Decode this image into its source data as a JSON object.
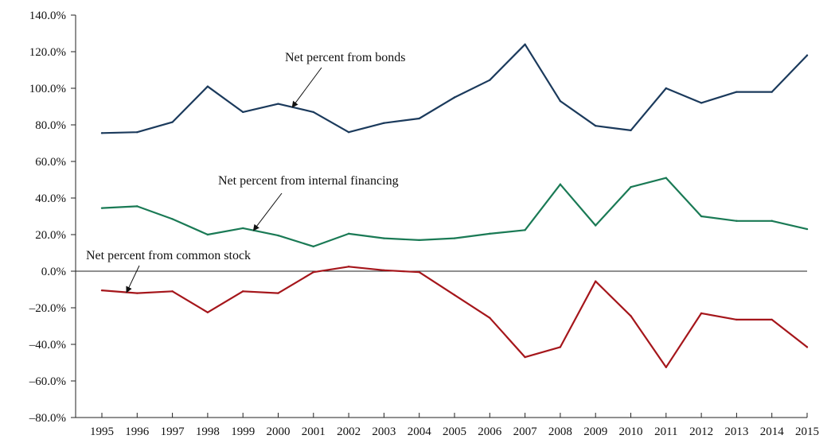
{
  "chart_data": {
    "type": "line",
    "x": [
      "1995",
      "1996",
      "1997",
      "1998",
      "1999",
      "2000",
      "2001",
      "2002",
      "2003",
      "2004",
      "2005",
      "2006",
      "2007",
      "2008",
      "2009",
      "2010",
      "2011",
      "2012",
      "2013",
      "2014",
      "2015"
    ],
    "y_ticks": [
      "140.0%",
      "120.0%",
      "100.0%",
      "80.0%",
      "60.0%",
      "40.0%",
      "20.0%",
      "0.0%",
      "–20.0%",
      "–40.0%",
      "–60.0%",
      "–80.0%"
    ],
    "ylim": [
      -80,
      140
    ],
    "series": [
      {
        "key": "bonds",
        "values": [
          75.5,
          76,
          81.5,
          101,
          87,
          91.5,
          87,
          76,
          81,
          83.5,
          95,
          104.5,
          124,
          93,
          79.5,
          77,
          100,
          92,
          98,
          98,
          118
        ],
        "color": "#1b3a5c"
      },
      {
        "key": "internal",
        "values": [
          34.5,
          35.5,
          28.5,
          20,
          23.5,
          19.5,
          13.5,
          20.5,
          18,
          17,
          18,
          20.5,
          22.5,
          47.5,
          25,
          46,
          51,
          30,
          27.5,
          27.5,
          23
        ],
        "color": "#1a7a55"
      },
      {
        "key": "common",
        "values": [
          -10.5,
          -12,
          -11,
          -22.5,
          -11,
          -12,
          -0.5,
          2.5,
          0.5,
          -0.5,
          -13,
          -25.5,
          -47,
          -41.5,
          -5.5,
          -24.5,
          -52.5,
          -23,
          -26.5,
          -26.5,
          -41.5
        ],
        "color": "#a5161b"
      }
    ],
    "annotations": [
      {
        "key": "bonds",
        "text": "Net percent from bonds"
      },
      {
        "key": "internal",
        "text": "Net percent from internal financing"
      },
      {
        "key": "common",
        "text": "Net percent from common stock"
      }
    ]
  }
}
